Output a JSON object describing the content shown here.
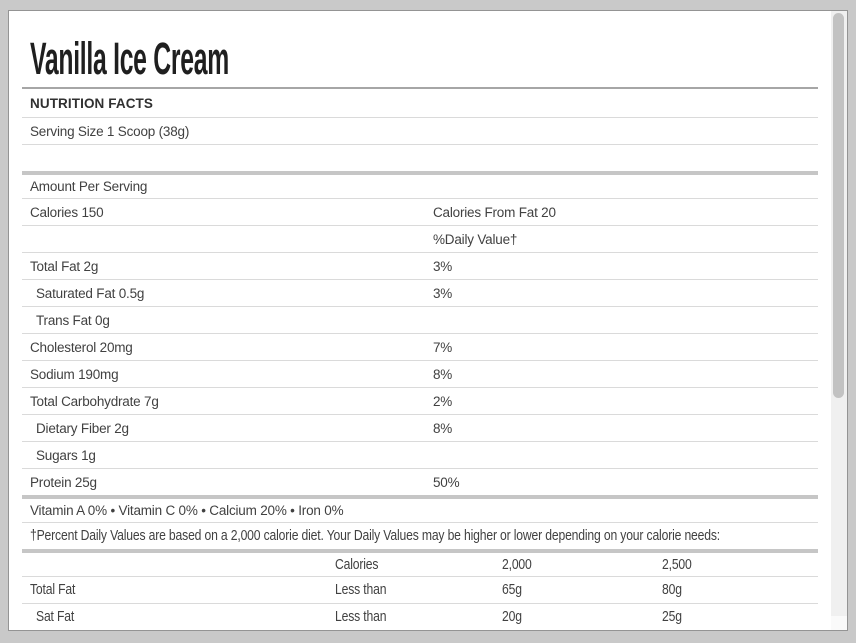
{
  "title": "Vanilla Ice Cream",
  "facts": {
    "section_header": "NUTRITION FACTS",
    "rows": [
      {
        "left": "Serving Size 1 Scoop (38g)",
        "right": "",
        "border": "thin",
        "indent": false
      },
      {
        "left": "",
        "right": "",
        "border": "thin",
        "indent": false
      },
      {
        "left": "Amount Per Serving",
        "right": "",
        "border": "thick",
        "indent": false
      },
      {
        "left": "Calories 150",
        "right": "Calories From Fat 20",
        "border": "thin",
        "indent": false
      },
      {
        "left": "",
        "right": "%Daily Value†",
        "border": "thin",
        "indent": false
      },
      {
        "left": "Total Fat 2g",
        "right": "3%",
        "border": "thin",
        "indent": false
      },
      {
        "left": "Saturated Fat 0.5g",
        "right": "3%",
        "border": "thin",
        "indent": true
      },
      {
        "left": "Trans Fat 0g",
        "right": "",
        "border": "thin",
        "indent": true
      },
      {
        "left": "Cholesterol 20mg",
        "right": "7%",
        "border": "thin",
        "indent": false
      },
      {
        "left": "Sodium 190mg",
        "right": "8%",
        "border": "thin",
        "indent": false
      },
      {
        "left": "Total Carbohydrate 7g",
        "right": "2%",
        "border": "thin",
        "indent": false
      },
      {
        "left": "Dietary Fiber 2g",
        "right": "8%",
        "border": "thin",
        "indent": true
      },
      {
        "left": "Sugars 1g",
        "right": "",
        "border": "thin",
        "indent": true
      },
      {
        "left": "Protein 25g",
        "right": "50%",
        "border": "thin",
        "indent": false
      }
    ],
    "vitamins": "Vitamin A 0% • Vitamin C 0% • Calcium 20% • Iron 0%",
    "footnote": "†Percent Daily Values are based on a 2,000 calorie diet. Your Daily Values may be higher or lower depending on your calorie needs:",
    "reference_table": {
      "rows": [
        {
          "cells": [
            "",
            "Calories",
            "2,000",
            "2,500"
          ],
          "border": "thick",
          "indent": false
        },
        {
          "cells": [
            "Total Fat",
            "Less than",
            "65g",
            "80g"
          ],
          "border": "thin",
          "indent": false
        },
        {
          "cells": [
            "Sat Fat",
            "Less than",
            "20g",
            "25g"
          ],
          "border": "thin",
          "indent": true
        }
      ]
    }
  },
  "colors": {
    "background": "#c9c9c9",
    "panel": "#ffffff",
    "thin_divider": "#dadada",
    "thick_divider": "#c6c6c6",
    "header_divider": "#a6a6a6",
    "text": "#414141",
    "scroll_thumb": "#c2c2c2"
  }
}
